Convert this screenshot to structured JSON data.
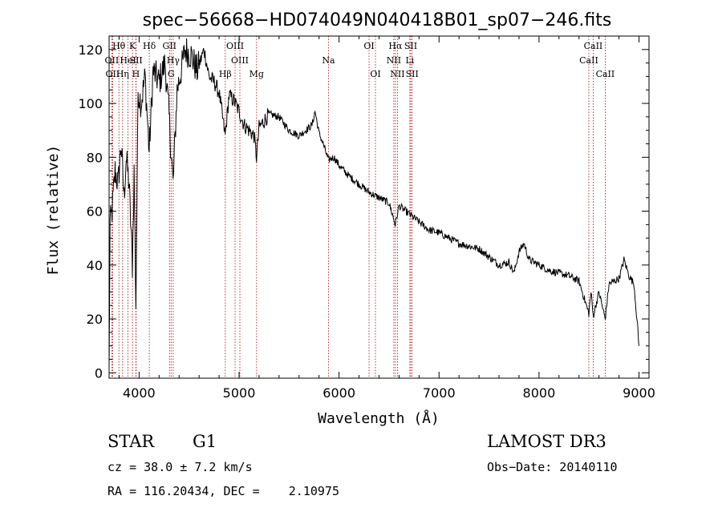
{
  "chart_data": {
    "type": "line",
    "title": "spec−56668−HD074049N040418B01_sp07−246.fits",
    "xlabel": "Wavelength (Å)",
    "ylabel": "Flux (relative)",
    "xlim": [
      3700,
      9100
    ],
    "ylim": [
      -2,
      125
    ],
    "xticks": [
      4000,
      5000,
      6000,
      7000,
      8000,
      9000
    ],
    "yticks": [
      0,
      20,
      40,
      60,
      80,
      100,
      120
    ],
    "line_color": "#000000",
    "marker_color": "#aa0000",
    "series": [
      {
        "name": "flux",
        "anchors": [
          [
            3700,
            2
          ],
          [
            3710,
            55
          ],
          [
            3730,
            60
          ],
          [
            3760,
            75
          ],
          [
            3790,
            70
          ],
          [
            3820,
            85
          ],
          [
            3850,
            65
          ],
          [
            3870,
            80
          ],
          [
            3900,
            70
          ],
          [
            3933,
            40
          ],
          [
            3950,
            75
          ],
          [
            3968,
            25
          ],
          [
            3990,
            105
          ],
          [
            4020,
            100
          ],
          [
            4060,
            110
          ],
          [
            4101,
            82
          ],
          [
            4140,
            112
          ],
          [
            4200,
            108
          ],
          [
            4260,
            115
          ],
          [
            4300,
            95
          ],
          [
            4340,
            70
          ],
          [
            4380,
            105
          ],
          [
            4420,
            112
          ],
          [
            4460,
            120
          ],
          [
            4520,
            118
          ],
          [
            4580,
            112
          ],
          [
            4650,
            120
          ],
          [
            4700,
            110
          ],
          [
            4750,
            108
          ],
          [
            4800,
            104
          ],
          [
            4861,
            88
          ],
          [
            4900,
            103
          ],
          [
            4950,
            101
          ],
          [
            5000,
            97
          ],
          [
            5050,
            92
          ],
          [
            5100,
            90
          ],
          [
            5150,
            88
          ],
          [
            5175,
            80
          ],
          [
            5200,
            91
          ],
          [
            5300,
            96
          ],
          [
            5400,
            95
          ],
          [
            5500,
            90
          ],
          [
            5600,
            88
          ],
          [
            5700,
            91
          ],
          [
            5730,
            92
          ],
          [
            5760,
            97
          ],
          [
            5800,
            89
          ],
          [
            5850,
            84
          ],
          [
            5893,
            79
          ],
          [
            5950,
            80
          ],
          [
            6000,
            77
          ],
          [
            6100,
            73
          ],
          [
            6200,
            70
          ],
          [
            6300,
            67
          ],
          [
            6400,
            65
          ],
          [
            6500,
            63
          ],
          [
            6563,
            55
          ],
          [
            6600,
            62
          ],
          [
            6700,
            59
          ],
          [
            6800,
            56
          ],
          [
            6900,
            53
          ],
          [
            7000,
            52
          ],
          [
            7100,
            50
          ],
          [
            7200,
            48
          ],
          [
            7300,
            47
          ],
          [
            7400,
            46
          ],
          [
            7500,
            43
          ],
          [
            7600,
            40
          ],
          [
            7700,
            41
          ],
          [
            7750,
            37
          ],
          [
            7800,
            45
          ],
          [
            7850,
            48
          ],
          [
            7900,
            42
          ],
          [
            8000,
            40
          ],
          [
            8100,
            38
          ],
          [
            8200,
            37
          ],
          [
            8300,
            36
          ],
          [
            8400,
            34
          ],
          [
            8498,
            22
          ],
          [
            8520,
            30
          ],
          [
            8542,
            21
          ],
          [
            8600,
            30
          ],
          [
            8662,
            20
          ],
          [
            8700,
            33
          ],
          [
            8800,
            35
          ],
          [
            8850,
            42
          ],
          [
            8900,
            36
          ],
          [
            8950,
            33
          ],
          [
            8990,
            15
          ],
          [
            9000,
            10
          ]
        ]
      }
    ],
    "lines": [
      {
        "label": "Hθ",
        "x": 3798,
        "row": 1
      },
      {
        "label": "OII",
        "x": 3727,
        "row": 2
      },
      {
        "label": "OII",
        "x": 3735,
        "row": 3
      },
      {
        "label": "Hη",
        "x": 3835,
        "row": 3
      },
      {
        "label": "HeI",
        "x": 3889,
        "row": 2
      },
      {
        "label": "K",
        "x": 3934,
        "row": 1
      },
      {
        "label": "SII",
        "x": 3970,
        "row": 2
      },
      {
        "label": "H",
        "x": 3968,
        "row": 3
      },
      {
        "label": "Hδ",
        "x": 4102,
        "row": 1
      },
      {
        "label": "GII",
        "x": 4304,
        "row": 1
      },
      {
        "label": "Hγ",
        "x": 4341,
        "row": 2
      },
      {
        "label": "G",
        "x": 4320,
        "row": 3
      },
      {
        "label": "Hβ",
        "x": 4862,
        "row": 3
      },
      {
        "label": "OIII",
        "x": 4960,
        "row": 1
      },
      {
        "label": "OIII",
        "x": 5008,
        "row": 2
      },
      {
        "label": "Mg",
        "x": 5175,
        "row": 3
      },
      {
        "label": "Na",
        "x": 5894,
        "row": 2
      },
      {
        "label": "OI",
        "x": 6300,
        "row": 1
      },
      {
        "label": "OI",
        "x": 6364,
        "row": 3
      },
      {
        "label": "Hα",
        "x": 6564,
        "row": 1
      },
      {
        "label": "NII",
        "x": 6548,
        "row": 2
      },
      {
        "label": "NII",
        "x": 6584,
        "row": 3
      },
      {
        "label": "SII",
        "x": 6717,
        "row": 1
      },
      {
        "label": "Li",
        "x": 6708,
        "row": 2
      },
      {
        "label": "SII",
        "x": 6731,
        "row": 3
      },
      {
        "label": "CaII",
        "x": 8542,
        "row": 1
      },
      {
        "label": "CaII",
        "x": 8498,
        "row": 2
      },
      {
        "label": "CaII",
        "x": 8662,
        "row": 3
      }
    ]
  },
  "info": {
    "class_label": "STAR",
    "subclass": "G1",
    "survey": "LAMOST DR3",
    "cz": "cz = 38.0 ± 7.2 km/s",
    "obs_date": "Obs−Date: 20140110",
    "coords": "RA = 116.20434, DEC =    2.10975"
  }
}
